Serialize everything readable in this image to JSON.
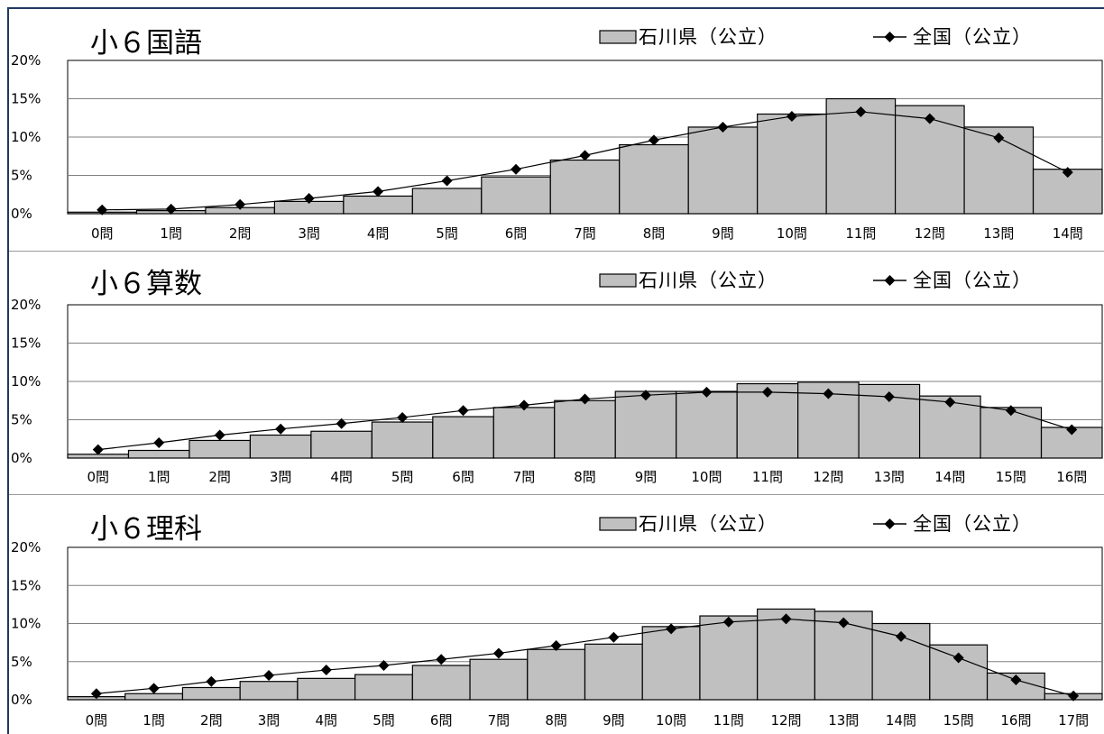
{
  "colors": {
    "bar": "#c0c0c0",
    "bar_stroke": "#000000",
    "line": "#000000",
    "grid": "#808080",
    "frame": "#1f3a5f"
  },
  "chart_data": [
    {
      "type": "bar",
      "title": "小６国語",
      "categories": [
        "0問",
        "1問",
        "2問",
        "3問",
        "4問",
        "5問",
        "6問",
        "7問",
        "8問",
        "9問",
        "10問",
        "11問",
        "12問",
        "13問",
        "14問"
      ],
      "series": [
        {
          "name": "石川県（公立）",
          "type": "bar",
          "values": [
            0.2,
            0.4,
            0.8,
            1.6,
            2.3,
            3.3,
            4.8,
            7.0,
            9.0,
            11.3,
            13.0,
            15.0,
            14.1,
            11.3,
            5.8
          ]
        },
        {
          "name": "全国（公立）",
          "type": "line",
          "marker": "diamond",
          "values": [
            0.5,
            0.6,
            1.2,
            2.0,
            2.9,
            4.3,
            5.8,
            7.6,
            9.6,
            11.3,
            12.7,
            13.3,
            12.4,
            9.9,
            5.4
          ]
        }
      ],
      "yticks": [
        "0%",
        "5%",
        "10%",
        "15%",
        "20%"
      ],
      "ylim": [
        0,
        20
      ],
      "grid": true,
      "legend": "top-right"
    },
    {
      "type": "bar",
      "title": "小６算数",
      "categories": [
        "0問",
        "1問",
        "2問",
        "3問",
        "4問",
        "5問",
        "6問",
        "7問",
        "8問",
        "9問",
        "10問",
        "11問",
        "12問",
        "13問",
        "14問",
        "15問",
        "16問"
      ],
      "series": [
        {
          "name": "石川県（公立）",
          "type": "bar",
          "values": [
            0.5,
            1.0,
            2.3,
            3.0,
            3.5,
            4.7,
            5.4,
            6.6,
            7.5,
            8.7,
            8.7,
            9.7,
            9.9,
            9.6,
            8.1,
            6.6,
            4.0
          ]
        },
        {
          "name": "全国（公立）",
          "type": "line",
          "marker": "diamond",
          "values": [
            1.1,
            2.0,
            3.0,
            3.8,
            4.5,
            5.3,
            6.2,
            6.9,
            7.7,
            8.2,
            8.6,
            8.6,
            8.4,
            8.0,
            7.3,
            6.2,
            3.7
          ]
        }
      ],
      "yticks": [
        "0%",
        "5%",
        "10%",
        "15%",
        "20%"
      ],
      "ylim": [
        0,
        20
      ],
      "grid": true,
      "legend": "top-right"
    },
    {
      "type": "bar",
      "title": "小６理科",
      "categories": [
        "0問",
        "1問",
        "2問",
        "3問",
        "4問",
        "5問",
        "6問",
        "7問",
        "8問",
        "9問",
        "10問",
        "11問",
        "12問",
        "13問",
        "14問",
        "15問",
        "16問",
        "17問"
      ],
      "series": [
        {
          "name": "石川県（公立）",
          "type": "bar",
          "values": [
            0.4,
            0.8,
            1.6,
            2.4,
            2.8,
            3.3,
            4.5,
            5.3,
            6.6,
            7.3,
            9.6,
            11.0,
            11.9,
            11.6,
            10.0,
            7.2,
            3.5,
            0.8
          ]
        },
        {
          "name": "全国（公立）",
          "type": "line",
          "marker": "diamond",
          "values": [
            0.8,
            1.5,
            2.4,
            3.2,
            3.9,
            4.5,
            5.3,
            6.1,
            7.1,
            8.2,
            9.3,
            10.2,
            10.6,
            10.1,
            8.3,
            5.5,
            2.6,
            0.5
          ]
        }
      ],
      "yticks": [
        "0%",
        "5%",
        "10%",
        "15%",
        "20%"
      ],
      "ylim": [
        0,
        20
      ],
      "grid": true,
      "legend": "top-right"
    }
  ]
}
